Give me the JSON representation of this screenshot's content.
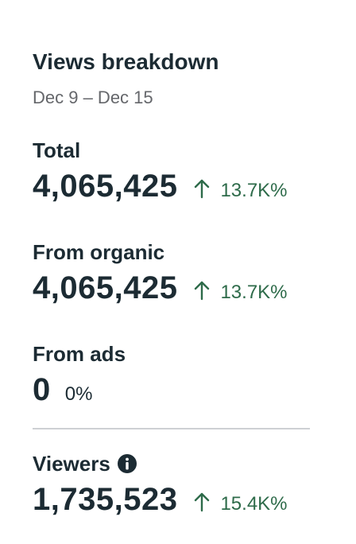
{
  "header": {
    "title": "Views breakdown",
    "date_range": "Dec 9 – Dec 15"
  },
  "metrics": [
    {
      "label": "Total",
      "value": "4,065,425",
      "change": "13.7K%",
      "trend": "up",
      "icon": "arrow-up-icon"
    },
    {
      "label": "From organic",
      "value": "4,065,425",
      "change": "13.7K%",
      "trend": "up",
      "icon": "arrow-up-icon"
    },
    {
      "label": "From ads",
      "value": "0",
      "change": "0%",
      "trend": "none"
    }
  ],
  "viewers": {
    "label": "Viewers",
    "value": "1,735,523",
    "change": "15.4K%",
    "trend": "up",
    "info_icon": "info-icon"
  },
  "colors": {
    "text_primary": "#1c2b33",
    "text_secondary": "#65676b",
    "positive_change": "#2e6b4a",
    "divider": "#ced0d4"
  }
}
